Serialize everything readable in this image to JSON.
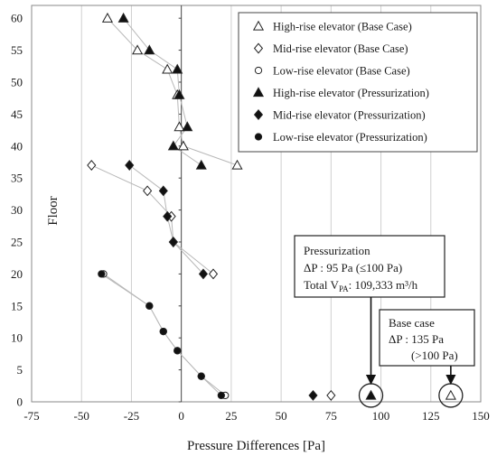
{
  "chart_data": {
    "type": "scatter",
    "xlabel": "Pressure Differences [Pa]",
    "ylabel": "Floor",
    "xlim": [
      -75,
      150
    ],
    "ylim": [
      0,
      62
    ],
    "x_ticks": [
      -75,
      -50,
      -25,
      0,
      25,
      50,
      75,
      100,
      125,
      150
    ],
    "y_ticks": [
      0,
      5,
      10,
      15,
      20,
      25,
      30,
      35,
      40,
      45,
      50,
      55,
      60
    ],
    "grid": "vertical",
    "legend_position": "top-right",
    "series": [
      {
        "name": "High-rise elevator (Base Case)",
        "marker": "triangle-open",
        "points": [
          [
            -37,
            60
          ],
          [
            -22,
            55
          ],
          [
            -7,
            52
          ],
          [
            -2,
            48
          ],
          [
            -1,
            43
          ],
          [
            1,
            40
          ],
          [
            28,
            37
          ]
        ]
      },
      {
        "name": "Mid-rise elevator (Base Case)",
        "marker": "diamond-open",
        "points": [
          [
            -45,
            37
          ],
          [
            -17,
            33
          ],
          [
            -5,
            29
          ],
          [
            -4,
            25
          ],
          [
            16,
            20
          ]
        ]
      },
      {
        "name": "Low-rise elevator (Base Case)",
        "marker": "circle-open",
        "points": [
          [
            -39,
            20
          ],
          [
            -16,
            15
          ],
          [
            -9,
            11
          ],
          [
            -2,
            8
          ],
          [
            10,
            4
          ],
          [
            22,
            1
          ]
        ]
      },
      {
        "name": "High-rise elevator (Pressurization)",
        "marker": "triangle-filled",
        "points": [
          [
            -29,
            60
          ],
          [
            -16,
            55
          ],
          [
            -2,
            52
          ],
          [
            -1,
            48
          ],
          [
            3,
            43
          ],
          [
            -4,
            40
          ],
          [
            10,
            37
          ]
        ]
      },
      {
        "name": "Mid-rise elevator (Pressurization)",
        "marker": "diamond-filled",
        "points": [
          [
            -26,
            37
          ],
          [
            -9,
            33
          ],
          [
            -7,
            29
          ],
          [
            -4,
            25
          ],
          [
            11,
            20
          ]
        ]
      },
      {
        "name": "Low-rise elevator (Pressurization)",
        "marker": "circle-filled",
        "points": [
          [
            -40,
            20
          ],
          [
            -16,
            15
          ],
          [
            -9,
            11
          ],
          [
            -2,
            8
          ],
          [
            10,
            4
          ],
          [
            20,
            1
          ]
        ]
      }
    ],
    "extra_points": [
      {
        "marker": "triangle-open",
        "x": 135,
        "y": 1
      },
      {
        "marker": "diamond-open",
        "x": 75,
        "y": 1
      },
      {
        "marker": "triangle-filled",
        "x": 95,
        "y": 1
      },
      {
        "marker": "diamond-filled",
        "x": 66,
        "y": 1
      }
    ],
    "annotations": [
      {
        "id": "pressurization",
        "lines": [
          "Pressurization",
          "ΔP : 95 Pa  (≤100 Pa)",
          "Total V_PA: 109,333 m³/h"
        ],
        "target": [
          95,
          1
        ]
      },
      {
        "id": "base",
        "lines": [
          "Base case",
          "ΔP : 135 Pa",
          "(>100 Pa)"
        ],
        "target": [
          135,
          1
        ]
      }
    ]
  }
}
